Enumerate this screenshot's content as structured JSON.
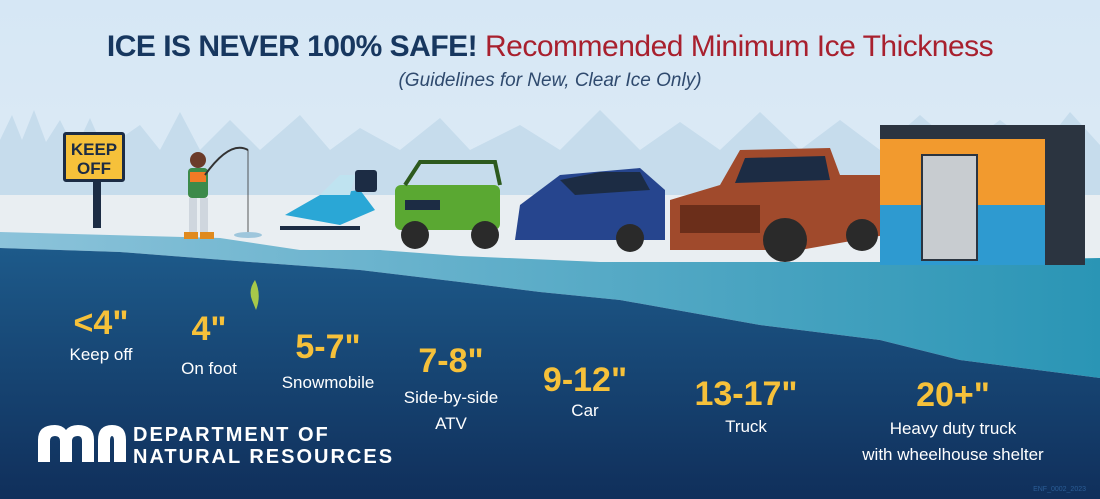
{
  "header": {
    "title_bold": "ICE IS NEVER 100% SAFE!",
    "title_rest": "Recommended Minimum Ice Thickness",
    "subtitle": "(Guidelines for New, Clear Ice Only)"
  },
  "sign": {
    "line1": "KEEP",
    "line2": "OFF"
  },
  "guidelines": [
    {
      "thickness": "<4\"",
      "label": "Keep off"
    },
    {
      "thickness": "4\"",
      "label": "On foot"
    },
    {
      "thickness": "5-7\"",
      "label": "Snowmobile"
    },
    {
      "thickness": "7-8\"",
      "label": "Side-by-side",
      "label2": "ATV"
    },
    {
      "thickness": "9-12\"",
      "label": "Car"
    },
    {
      "thickness": "13-17\"",
      "label": "Truck"
    },
    {
      "thickness": "20+\"",
      "label": "Heavy duty truck",
      "label2": "with wheelhouse shelter"
    }
  ],
  "logo": {
    "mark": "mn",
    "line1": "DEPARTMENT OF",
    "line2": "NATURAL RESOURCES"
  },
  "code": "ENF_0002_2023",
  "colors": {
    "navy": "#17375f",
    "red": "#a8202e",
    "yellow": "#f6c13a",
    "water": "#123f6e",
    "ice": "#7fb9d2"
  }
}
